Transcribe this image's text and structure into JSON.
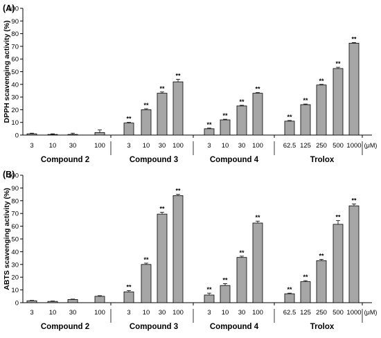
{
  "chart_data": [
    {
      "type": "bar",
      "panel_label": "(A)",
      "ylabel": "DPPH scavenging activity (%)",
      "ylim": [
        0,
        100
      ],
      "yticks": [
        "0",
        "10",
        "20",
        "30",
        "40",
        "50",
        "60",
        "70",
        "80",
        "90",
        "100"
      ],
      "unit": "(μM)",
      "groups": [
        {
          "name": "Compound 2",
          "categories": [
            "3",
            "10",
            "30",
            "100"
          ],
          "values": [
            1,
            0.5,
            0.5,
            2
          ],
          "errors": [
            0.5,
            0.5,
            1,
            2
          ],
          "labels": [
            "",
            "",
            "",
            ""
          ]
        },
        {
          "name": "Compound 3",
          "categories": [
            "3",
            "10",
            "30",
            "100"
          ],
          "values": [
            9.5,
            20,
            33,
            42
          ],
          "errors": [
            0.5,
            0.8,
            1,
            2
          ],
          "labels": [
            "**",
            "**",
            "**",
            "**"
          ]
        },
        {
          "name": "Compound 4",
          "categories": [
            "3",
            "10",
            "30",
            "100"
          ],
          "values": [
            5,
            12,
            23,
            33
          ],
          "errors": [
            0.5,
            0.5,
            0.5,
            0.5
          ],
          "labels": [
            "**",
            "**",
            "**",
            "**"
          ]
        },
        {
          "name": "Trolox",
          "categories": [
            "62.5",
            "125",
            "250",
            "500",
            "1000"
          ],
          "values": [
            11,
            24,
            39.5,
            52.5,
            72.5
          ],
          "errors": [
            0.5,
            0.5,
            0.5,
            1,
            0.5
          ],
          "labels": [
            "**",
            "**",
            "**",
            "**",
            "**"
          ]
        }
      ],
      "grid": false,
      "bar_color": "#a6a6a6"
    },
    {
      "type": "bar",
      "panel_label": "(B)",
      "ylabel": "ABTS scavenging activity (%)",
      "ylim": [
        0,
        100
      ],
      "yticks": [
        "0",
        "10",
        "20",
        "30",
        "40",
        "50",
        "60",
        "70",
        "80",
        "90",
        "100"
      ],
      "unit": "(μM)",
      "groups": [
        {
          "name": "Compound 2",
          "categories": [
            "3",
            "10",
            "30",
            "100"
          ],
          "values": [
            1.5,
            1,
            2.5,
            5
          ],
          "errors": [
            0.3,
            0.3,
            0.3,
            0.5
          ],
          "labels": [
            "",
            "",
            "",
            ""
          ]
        },
        {
          "name": "Compound 3",
          "categories": [
            "3",
            "10",
            "30",
            "100"
          ],
          "values": [
            8.5,
            30,
            69.5,
            84
          ],
          "errors": [
            1,
            1,
            1.5,
            1
          ],
          "labels": [
            "**",
            "**",
            "**",
            "**"
          ]
        },
        {
          "name": "Compound 4",
          "categories": [
            "3",
            "10",
            "30",
            "100"
          ],
          "values": [
            6,
            13.5,
            35.5,
            62.5
          ],
          "errors": [
            1.5,
            1.5,
            1,
            1.5
          ],
          "labels": [
            "**",
            "**",
            "**",
            "**"
          ]
        },
        {
          "name": "Trolox",
          "categories": [
            "62.5",
            "125",
            "250",
            "500",
            "1000"
          ],
          "values": [
            7,
            16.5,
            33,
            61.5,
            76
          ],
          "errors": [
            0.5,
            0.8,
            1,
            3,
            1.5
          ],
          "labels": [
            "**",
            "**",
            "**",
            "**",
            "**"
          ]
        }
      ],
      "grid": false,
      "bar_color": "#a6a6a6"
    }
  ]
}
